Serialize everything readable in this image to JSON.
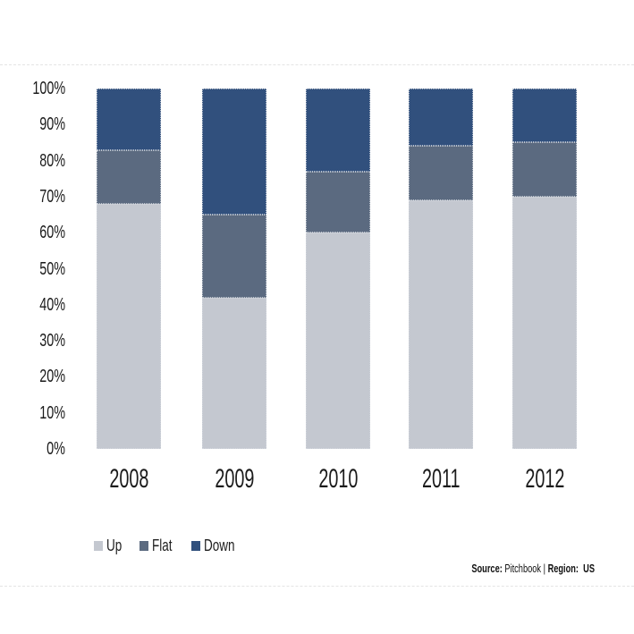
{
  "chart_data": {
    "type": "bar",
    "variant": "100%-stacked-column",
    "title": "",
    "categories": [
      "2008",
      "2009",
      "2010",
      "2011",
      "2012"
    ],
    "series": [
      {
        "name": "Up",
        "color": "#c4c8d0",
        "values": [
          68,
          42,
          60,
          69,
          70
        ]
      },
      {
        "name": "Flat",
        "color": "#5b6a80",
        "values": [
          15,
          23,
          17,
          15,
          15
        ]
      },
      {
        "name": "Down",
        "color": "#31507d",
        "values": [
          17,
          35,
          23,
          16,
          15
        ]
      }
    ],
    "stack_order_top_to_bottom": [
      "Down",
      "Flat",
      "Up"
    ],
    "y_axis": {
      "ticks": [
        "100%",
        "90%",
        "80%",
        "70%",
        "60%",
        "50%",
        "40%",
        "30%",
        "20%",
        "10%",
        "0%"
      ],
      "min": 0,
      "max": 100,
      "unit": "%"
    },
    "xlabel": "",
    "ylabel": "",
    "grid": false,
    "legend_position": "bottom-left"
  },
  "footer": {
    "source_label": "Source:",
    "source_value": "Pitchbook",
    "separator": "|",
    "region_label": "Region:",
    "region_value": "US"
  }
}
